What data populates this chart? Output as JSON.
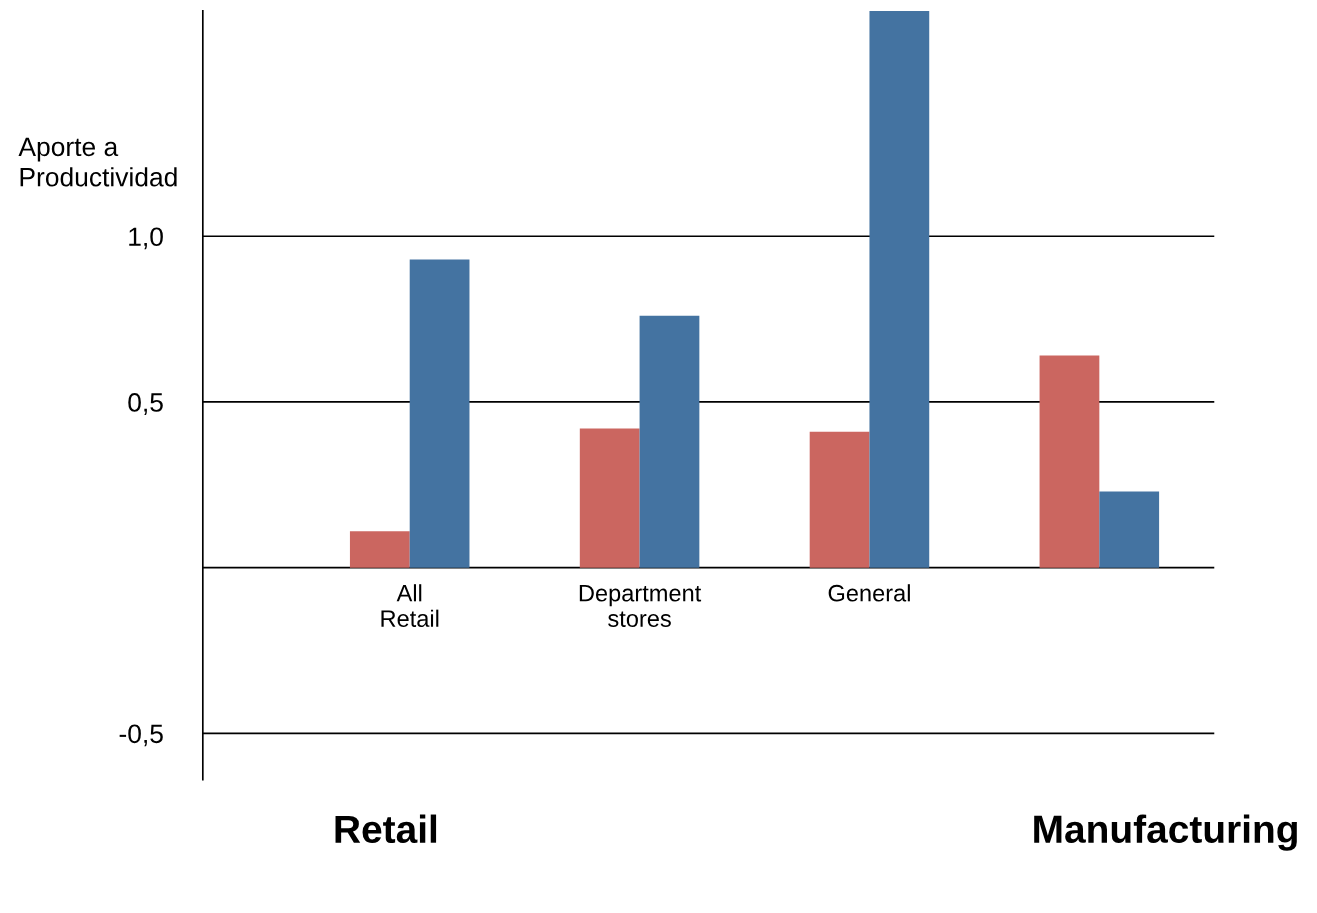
{
  "chart_data": {
    "type": "bar",
    "ylabel": "Aporte a\nProductividad",
    "categories": [
      "All\nRetail",
      "Department\nstores",
      "General",
      null
    ],
    "series": [
      {
        "color": "#cb6660",
        "values": [
          0.11,
          0.42,
          0.41,
          0.64
        ]
      },
      {
        "color": "#4473a1",
        "values": [
          0.93,
          0.76,
          1.68,
          0.23
        ]
      }
    ],
    "ylim": [
      -0.64,
      1.68
    ],
    "yticks": [
      {
        "value": -0.5,
        "label": "-0,5"
      },
      {
        "value": 0,
        "label": null
      },
      {
        "value": 0.5,
        "label": "0,5"
      },
      {
        "value": 1.0,
        "label": "1,0"
      }
    ],
    "grid": "y",
    "legend": false,
    "annotations": [
      "Retail",
      "Manufacturing"
    ]
  }
}
